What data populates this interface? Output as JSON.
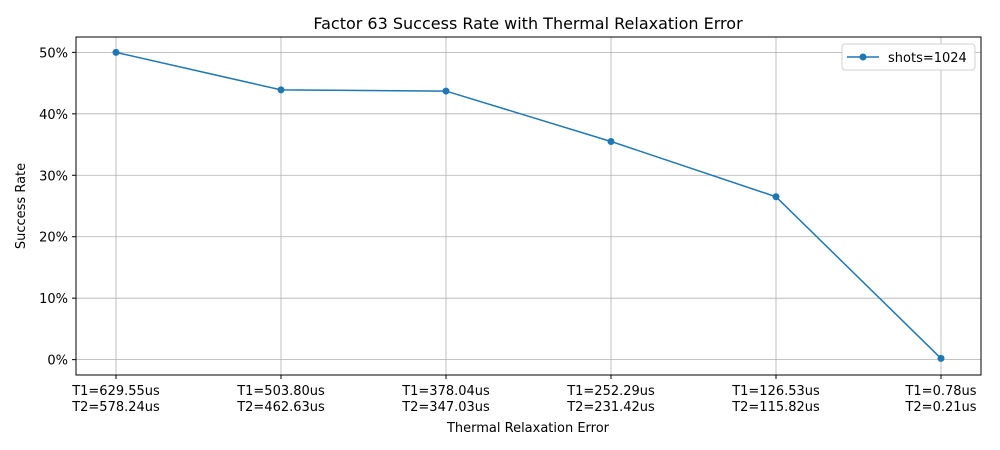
{
  "chart_data": {
    "type": "line",
    "title": "Factor 63 Success Rate with Thermal Relaxation Error",
    "xlabel": "Thermal Relaxation Error",
    "ylabel": "Success Rate",
    "categories": [
      [
        "T1=629.55us",
        "T2=578.24us"
      ],
      [
        "T1=503.80us",
        "T2=462.63us"
      ],
      [
        "T1=378.04us",
        "T2=347.03us"
      ],
      [
        "T1=252.29us",
        "T2=231.42us"
      ],
      [
        "T1=126.53us",
        "T2=115.82us"
      ],
      [
        "T1=0.78us",
        "T2=0.21us"
      ]
    ],
    "series": [
      {
        "name": "shots=1024",
        "values": [
          0.5,
          0.439,
          0.437,
          0.355,
          0.265,
          0.002
        ],
        "color": "#1f77b4"
      }
    ],
    "yticks": [
      0,
      0.1,
      0.2,
      0.3,
      0.4,
      0.5
    ],
    "ytick_labels": [
      "0%",
      "10%",
      "20%",
      "30%",
      "40%",
      "50%"
    ],
    "ylim": [
      -0.025,
      0.525
    ],
    "grid": true,
    "legend_position": "top-right"
  }
}
